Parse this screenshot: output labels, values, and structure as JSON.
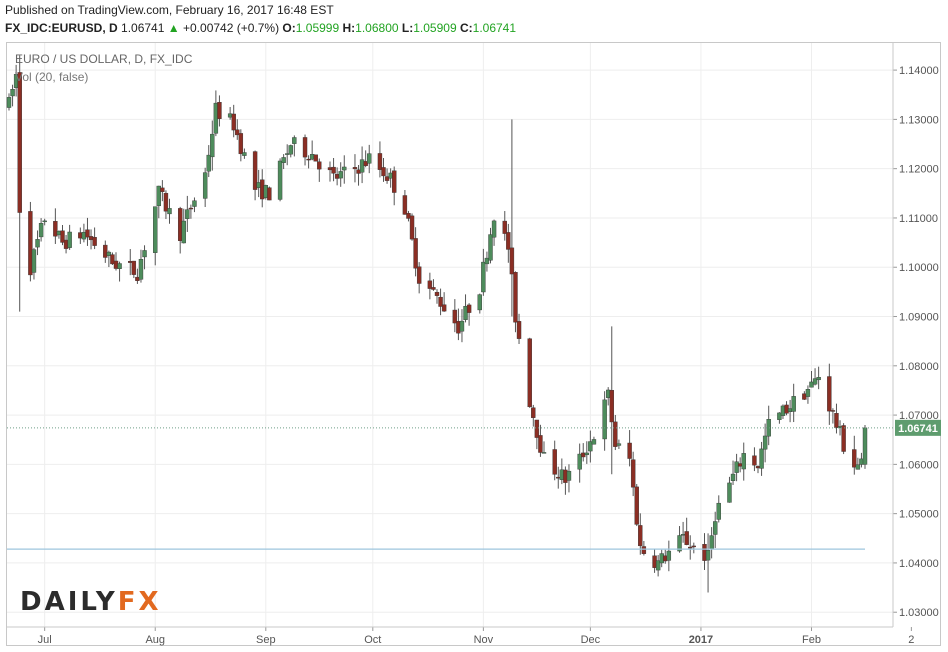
{
  "header": {
    "published": "Published on TradingView.com, February 16, 2017 16:48 EST",
    "symbol": "FX_IDC:EURUSD, D",
    "price": "1.06741",
    "change": "+0.00742 (+0.7%)",
    "open_label": "O:",
    "open": "1.05999",
    "high_label": "H:",
    "high": "1.06800",
    "low_label": "L:",
    "low": "1.05909",
    "close_label": "C:",
    "close": "1.06741"
  },
  "labels": {
    "main_series": "EURO / US DOLLAR, D, FX_IDC",
    "volume": "Vol (20, false)"
  },
  "logo": {
    "part1": "DAILY",
    "part2": "FX"
  },
  "colors": {
    "up": "#4e8c5c",
    "down": "#8b2e24",
    "wick": "#555555",
    "current_tag": "#5e9c6e",
    "support": "#9ec5de",
    "grid": "#eeeeee"
  },
  "chart_data": {
    "type": "candlestick",
    "title": "EURO / US DOLLAR, D, FX_IDC",
    "ylim": [
      1.027,
      1.1455
    ],
    "y_ticks": [
      "1.03000",
      "1.04000",
      "1.05000",
      "1.06000",
      "1.07000",
      "1.08000",
      "1.09000",
      "1.10000",
      "1.11000",
      "1.12000",
      "1.13000",
      "1.14000"
    ],
    "x_ticks": [
      {
        "label": "Jul",
        "date": "2016-07-01"
      },
      {
        "label": "Aug",
        "date": "2016-08-01"
      },
      {
        "label": "Sep",
        "date": "2016-09-01"
      },
      {
        "label": "Oct",
        "date": "2016-10-01"
      },
      {
        "label": "Nov",
        "date": "2016-11-01"
      },
      {
        "label": "Dec",
        "date": "2016-12-01"
      },
      {
        "label": "2017",
        "date": "2017-01-01",
        "bold": true
      },
      {
        "label": "Feb",
        "date": "2017-02-01"
      },
      {
        "label": "2",
        "date": "2017-03-01"
      }
    ],
    "current_price": "1.06741",
    "current_value": 1.06741,
    "support_level": 1.0428,
    "grid": true,
    "anchors": [
      [
        "2016-06-20",
        1.13
      ],
      [
        "2016-06-23",
        1.139
      ],
      [
        "2016-06-24",
        1.112
      ],
      [
        "2016-06-27",
        1.1
      ],
      [
        "2016-07-01",
        1.11
      ],
      [
        "2016-07-06",
        1.105
      ],
      [
        "2016-07-12",
        1.107
      ],
      [
        "2016-07-20",
        1.101
      ],
      [
        "2016-07-27",
        1.099
      ],
      [
        "2016-08-02",
        1.115
      ],
      [
        "2016-08-08",
        1.107
      ],
      [
        "2016-08-15",
        1.119
      ],
      [
        "2016-08-18",
        1.132
      ],
      [
        "2016-08-23",
        1.129
      ],
      [
        "2016-08-29",
        1.116
      ],
      [
        "2016-09-02",
        1.115
      ],
      [
        "2016-09-08",
        1.125
      ],
      [
        "2016-09-14",
        1.123
      ],
      [
        "2016-09-20",
        1.118
      ],
      [
        "2016-09-26",
        1.12
      ],
      [
        "2016-09-30",
        1.122
      ],
      [
        "2016-10-06",
        1.118
      ],
      [
        "2016-10-10",
        1.112
      ],
      [
        "2016-10-14",
        1.098
      ],
      [
        "2016-10-20",
        1.093
      ],
      [
        "2016-10-25",
        1.088
      ],
      [
        "2016-10-31",
        1.096
      ],
      [
        "2016-11-04",
        1.111
      ],
      [
        "2016-11-08",
        1.104
      ],
      [
        "2016-11-10",
        1.09
      ],
      [
        "2016-11-14",
        1.073
      ],
      [
        "2016-11-18",
        1.061
      ],
      [
        "2016-11-24",
        1.057
      ],
      [
        "2016-11-28",
        1.061
      ],
      [
        "2016-12-02",
        1.066
      ],
      [
        "2016-12-06",
        1.074
      ],
      [
        "2016-12-08",
        1.064
      ],
      [
        "2016-12-12",
        1.061
      ],
      [
        "2016-12-15",
        1.043
      ],
      [
        "2016-12-20",
        1.04
      ],
      [
        "2016-12-27",
        1.045
      ],
      [
        "2017-01-03",
        1.041
      ],
      [
        "2017-01-05",
        1.05
      ],
      [
        "2017-01-09",
        1.056
      ],
      [
        "2017-01-13",
        1.062
      ],
      [
        "2017-01-17",
        1.06
      ],
      [
        "2017-01-20",
        1.068
      ],
      [
        "2017-01-26",
        1.072
      ],
      [
        "2017-02-01",
        1.076
      ],
      [
        "2017-02-03",
        1.078
      ],
      [
        "2017-02-07",
        1.07
      ],
      [
        "2017-02-10",
        1.064
      ],
      [
        "2017-02-13",
        1.06
      ],
      [
        "2017-02-15",
        1.06
      ],
      [
        "2017-02-16",
        1.0674
      ]
    ],
    "note_spikes": [
      {
        "date": "2016-06-24",
        "high": 1.143,
        "low": 1.091
      },
      {
        "date": "2016-11-09",
        "high": 1.13,
        "low": 1.09
      },
      {
        "date": "2016-12-07",
        "high": 1.088,
        "low": 1.058
      },
      {
        "date": "2017-01-03",
        "high": 1.046,
        "low": 1.034
      }
    ],
    "last_candle": {
      "date": "2017-02-16",
      "open": 1.05999,
      "high": 1.068,
      "low": 1.05909,
      "close": 1.06741
    }
  }
}
